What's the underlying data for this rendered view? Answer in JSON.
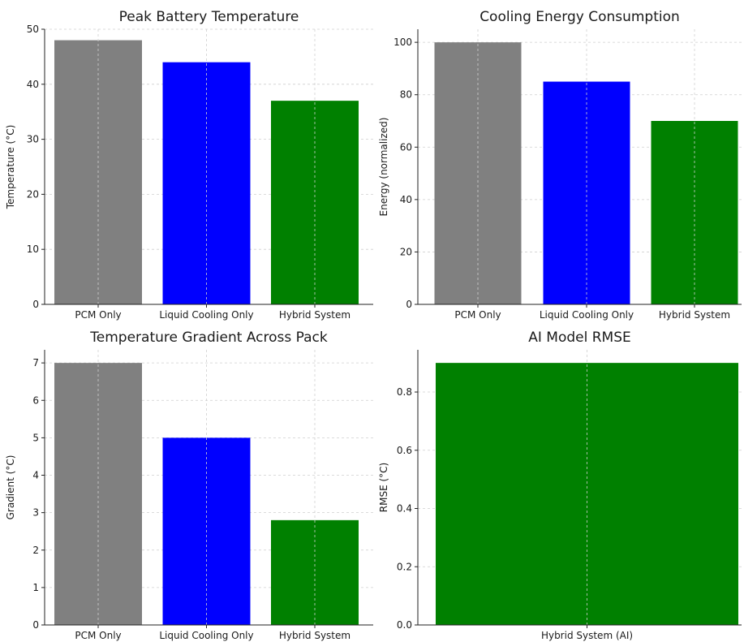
{
  "chart_data": [
    {
      "type": "bar",
      "title": "Peak Battery Temperature",
      "xlabel": "",
      "ylabel": "Temperature (°C)",
      "categories": [
        "PCM Only",
        "Liquid Cooling Only",
        "Hybrid System"
      ],
      "values": [
        48,
        44,
        37
      ],
      "colors": [
        "#808080",
        "#0000ff",
        "#008000"
      ],
      "ylim": [
        0,
        50
      ],
      "yticks": [
        "0",
        "10",
        "20",
        "30",
        "40",
        "50"
      ],
      "grid": true
    },
    {
      "type": "bar",
      "title": "Cooling Energy Consumption",
      "xlabel": "",
      "ylabel": "Energy (normalized)",
      "categories": [
        "PCM Only",
        "Liquid Cooling Only",
        "Hybrid System"
      ],
      "values": [
        100,
        85,
        70
      ],
      "colors": [
        "#808080",
        "#0000ff",
        "#008000"
      ],
      "ylim": [
        0,
        105
      ],
      "yticks": [
        "0",
        "20",
        "40",
        "60",
        "80",
        "100"
      ],
      "grid": true
    },
    {
      "type": "bar",
      "title": "Temperature Gradient Across Pack",
      "xlabel": "",
      "ylabel": "Gradient (°C)",
      "categories": [
        "PCM Only",
        "Liquid Cooling Only",
        "Hybrid System"
      ],
      "values": [
        7,
        5,
        2.8
      ],
      "colors": [
        "#808080",
        "#0000ff",
        "#008000"
      ],
      "ylim": [
        0,
        7.35
      ],
      "yticks": [
        "0",
        "1",
        "2",
        "3",
        "4",
        "5",
        "6",
        "7"
      ],
      "grid": true
    },
    {
      "type": "bar",
      "title": "AI Model RMSE",
      "xlabel": "",
      "ylabel": "RMSE (°C)",
      "categories": [
        "Hybrid System (AI)"
      ],
      "values": [
        0.9
      ],
      "colors": [
        "#008000"
      ],
      "ylim": [
        0,
        0.945
      ],
      "yticks": [
        "0.0",
        "0.2",
        "0.4",
        "0.6",
        "0.8"
      ],
      "grid": true
    }
  ]
}
